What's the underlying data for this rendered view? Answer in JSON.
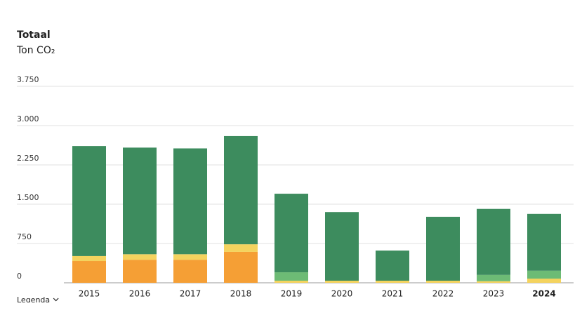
{
  "chart_data": {
    "type": "stacked-bar",
    "title": "Totaal",
    "subtitle": "Ton CO₂",
    "categories": [
      "2015",
      "2016",
      "2017",
      "2018",
      "2019",
      "2020",
      "2021",
      "2022",
      "2023",
      "2024"
    ],
    "series": [
      {
        "color": "#f59f35",
        "values": [
          415,
          440,
          440,
          590,
          0,
          0,
          0,
          0,
          0,
          0
        ]
      },
      {
        "color": "#f4d35e",
        "values": [
          95,
          105,
          105,
          145,
          40,
          40,
          40,
          40,
          30,
          80
        ]
      },
      {
        "color": "#6dbb75",
        "values": [
          0,
          0,
          0,
          0,
          160,
          0,
          0,
          0,
          120,
          150
        ]
      },
      {
        "color": "#3d8c5e",
        "values": [
          2100,
          2035,
          2020,
          2065,
          1500,
          1310,
          575,
          1220,
          1260,
          1085
        ]
      }
    ],
    "ylim": [
      0,
      3750
    ],
    "yticks": [
      0,
      {
        "value": 750,
        "label": "750"
      },
      {
        "value": 1500,
        "label": "1.500"
      },
      {
        "value": 2250,
        "label": "2.250"
      },
      {
        "value": 3000,
        "label": "3.000"
      },
      {
        "value": 3750,
        "label": "3.750"
      }
    ],
    "grid": true,
    "legend_toggle": "Legenda"
  }
}
